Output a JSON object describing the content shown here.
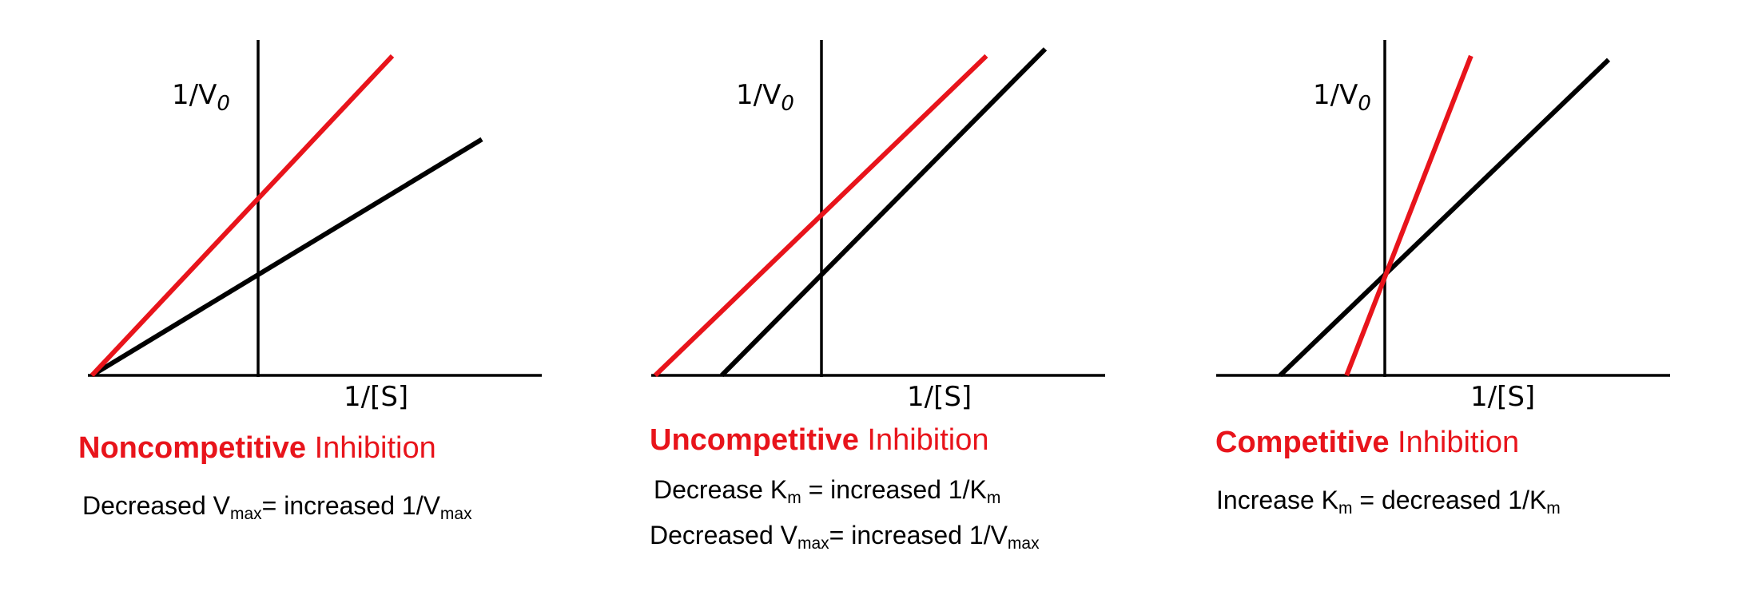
{
  "colors": {
    "inhibited": "#e8141b",
    "uninhibited": "#000000"
  },
  "panels": [
    {
      "id": "noncompetitive",
      "y_label": {
        "main": "1/V",
        "sub": "0"
      },
      "x_label": "1/[S]",
      "title": {
        "emph": "Noncompetitive",
        "rest": "Inhibition"
      },
      "notes": [
        {
          "parts": [
            "Decreased V",
            "max",
            "= increased 1/V",
            "max"
          ]
        }
      ],
      "lines": {
        "uninhibited": {
          "x_intercept": -1.0,
          "y_intercept": 0.3
        },
        "inhibited": {
          "x_intercept": -1.0,
          "y_intercept": 0.54
        }
      }
    },
    {
      "id": "uncompetitive",
      "y_label": {
        "main": "1/V",
        "sub": "0"
      },
      "x_label": "1/[S]",
      "title": {
        "emph": "Uncompetitive",
        "rest": "Inhibition"
      },
      "notes": [
        {
          "parts": [
            "Decrease K",
            "m",
            " = increased 1/K",
            "m"
          ]
        },
        {
          "parts": [
            "Decreased V",
            "max",
            "= increased 1/V",
            "max"
          ]
        }
      ],
      "lines": {
        "uninhibited": {
          "x_intercept": -0.6,
          "y_intercept": 0.3
        },
        "inhibited": {
          "x_intercept": -1.0,
          "y_intercept": 0.49
        }
      }
    },
    {
      "id": "competitive",
      "y_label": {
        "main": "1/V",
        "sub": "0"
      },
      "x_label": "1/[S]",
      "title": {
        "emph": "Competitive",
        "rest": "Inhibition"
      },
      "notes": [
        {
          "parts": [
            "Increase K",
            "m",
            " = decreased 1/K",
            "m"
          ]
        }
      ],
      "lines": {
        "uninhibited": {
          "x_intercept": -0.63,
          "y_intercept": 0.3
        },
        "inhibited": {
          "x_intercept": -0.23,
          "y_intercept": 0.3
        }
      }
    }
  ]
}
